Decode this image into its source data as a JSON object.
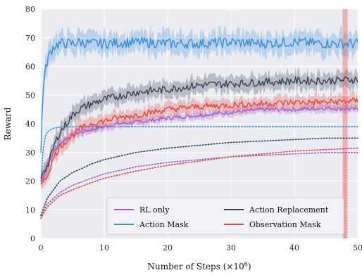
{
  "chart_data": {
    "type": "line",
    "title": "",
    "xlabel_main": "Number of Steps (×10",
    "xlabel_exp": "6",
    "xlabel_close": ")",
    "ylabel": "Reward",
    "xlim": [
      0,
      50
    ],
    "ylim": [
      0,
      80
    ],
    "xticks": [
      0,
      10,
      20,
      30,
      40,
      50
    ],
    "yticks": [
      0,
      10,
      20,
      30,
      40,
      50,
      60,
      70,
      80
    ],
    "grid": true,
    "legend_position": "bottom-right",
    "series": [
      {
        "name": "RL only",
        "color": "#a05cc9",
        "x": [
          0,
          0.5,
          1,
          2,
          3,
          4,
          5,
          6,
          8,
          10,
          12,
          15,
          20,
          25,
          30,
          35,
          40,
          45,
          50
        ],
        "values": [
          20,
          22,
          26,
          30,
          33,
          35,
          36,
          37,
          38,
          39,
          40,
          40.5,
          42,
          43,
          44,
          45,
          45,
          45.5,
          45
        ],
        "band": 1.5,
        "dotted": {
          "x": [
            0,
            0.5,
            1,
            2,
            3,
            5,
            8,
            10,
            15,
            20,
            25,
            30,
            35,
            40,
            45,
            50
          ],
          "values": [
            7,
            10,
            12,
            14,
            16,
            18.5,
            21,
            22.5,
            25,
            26.5,
            27.5,
            28.5,
            29,
            29.5,
            30,
            30
          ]
        }
      },
      {
        "name": "Action Mask",
        "color": "#3a8fd6",
        "x": [
          0,
          0.3,
          0.6,
          1,
          1.5,
          2,
          3,
          4,
          5,
          6,
          8,
          10,
          15,
          20,
          25,
          30,
          35,
          40,
          45,
          50
        ],
        "values": [
          30,
          50,
          57,
          62,
          65,
          67,
          68,
          68,
          68,
          68.5,
          68,
          68,
          68.5,
          68,
          68,
          68.5,
          68,
          68.5,
          68,
          68
        ],
        "band": 4,
        "dotted": {
          "x": [
            0,
            0.3,
            0.6,
            1,
            1.5,
            2,
            3,
            5,
            10,
            20,
            30,
            40,
            50
          ],
          "values": [
            20,
            30,
            35,
            37,
            38,
            38.5,
            38.8,
            39,
            39,
            39,
            39,
            39,
            39
          ]
        }
      },
      {
        "name": "Action Replacement",
        "color": "#3a4250",
        "x": [
          0,
          0.5,
          1,
          1.5,
          2,
          3,
          4,
          5,
          6,
          8,
          10,
          12,
          15,
          20,
          25,
          30,
          35,
          40,
          45,
          50
        ],
        "values": [
          21,
          24,
          25,
          28,
          32,
          37,
          40,
          43,
          45,
          47,
          48.5,
          49.5,
          51,
          52,
          53.5,
          54,
          54.5,
          55,
          55,
          55.5
        ],
        "band": 3,
        "dotted": {
          "x": [
            0,
            0.5,
            1,
            2,
            3,
            5,
            8,
            10,
            15,
            20,
            25,
            30,
            35,
            40,
            45,
            50
          ],
          "values": [
            8,
            11,
            14,
            17,
            20,
            23,
            26,
            27.5,
            30,
            31.5,
            32.5,
            33.5,
            34,
            34.5,
            35,
            35
          ]
        }
      },
      {
        "name": "Observation Mask",
        "color": "#e4473f",
        "x": [
          0,
          0.5,
          1,
          2,
          3,
          4,
          5,
          6,
          8,
          10,
          12,
          15,
          20,
          25,
          30,
          35,
          40,
          45,
          50
        ],
        "values": [
          19,
          20,
          22,
          28,
          32,
          34,
          36,
          38,
          40,
          41,
          42,
          43,
          45,
          46,
          46.5,
          47,
          47.5,
          47.5,
          48
        ],
        "band": 2.5,
        "dotted": {
          "x": [
            0,
            0.5,
            1,
            2,
            3,
            5,
            8,
            10,
            15,
            20,
            25,
            30,
            35,
            40,
            45,
            50
          ],
          "values": [
            7,
            9,
            11,
            13,
            15,
            17,
            19.5,
            21,
            23.5,
            25.5,
            27,
            28.5,
            29.5,
            30.5,
            31,
            31.5
          ]
        }
      }
    ]
  }
}
